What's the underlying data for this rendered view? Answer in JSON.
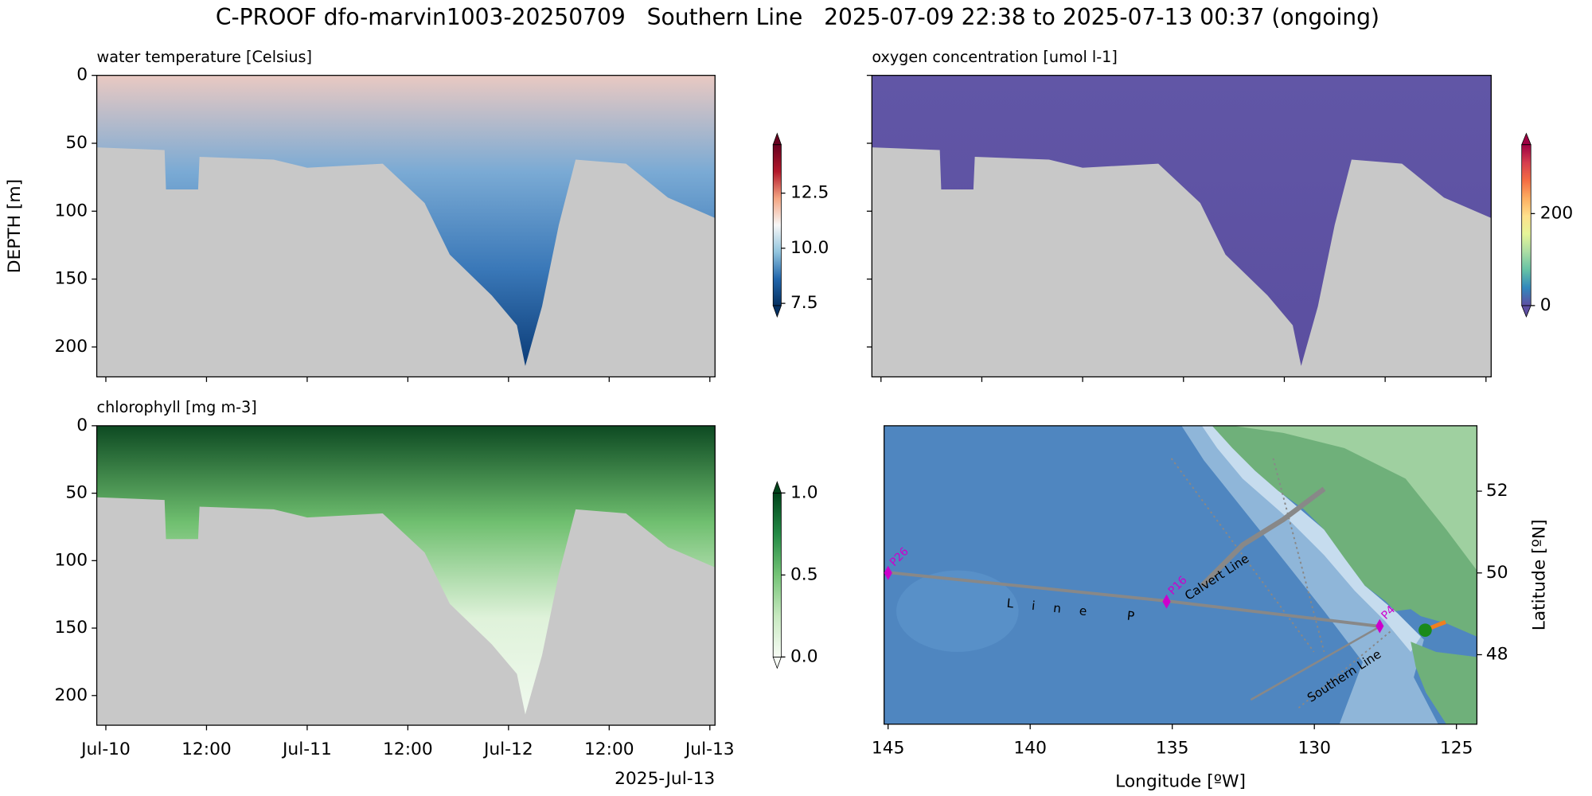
{
  "title": "C-PROOF dfo-marvin1003-20250709   Southern Line   2025-07-09 22:38 to 2025-07-13 00:37 (ongoing)",
  "chart_data": [
    {
      "type": "section",
      "title": "water temperature [Celsius]",
      "ylabel": "DEPTH [m]",
      "sharex": true,
      "x": [
        "2025-07-09 22:55",
        "2025-07-10 07:00",
        "2025-07-10 07:10",
        "2025-07-10 11:00",
        "2025-07-10 11:10",
        "2025-07-10 20:00",
        "2025-07-11 00:00",
        "2025-07-11 09:00",
        "2025-07-11 14:00",
        "2025-07-11 17:00",
        "2025-07-11 22:00",
        "2025-07-12 01:00",
        "2025-07-12 02:00",
        "2025-07-12 04:00",
        "2025-07-12 06:00",
        "2025-07-12 08:00",
        "2025-07-12 14:00",
        "2025-07-12 19:00",
        "2025-07-13 00:37"
      ],
      "values": [
        53,
        55,
        84,
        84,
        60,
        62,
        68,
        65,
        94,
        132,
        162,
        184,
        214,
        170,
        110,
        62,
        65,
        90,
        105
      ],
      "xlim": [
        "2025-07-09 22:55",
        "2025-07-13 00:37"
      ],
      "xticks": [
        "2025-07-10 00:00",
        "2025-07-10 12:00",
        "2025-07-11 00:00",
        "2025-07-11 12:00",
        "2025-07-12 00:00",
        "2025-07-12 12:00",
        "2025-07-13 00:00"
      ],
      "ylim": [
        222,
        0
      ],
      "yticks": [
        0,
        50,
        100,
        150,
        200
      ],
      "fill_colors": [
        "#e9c9c2",
        "#7aaad4",
        "#3a78b8",
        "#0b3c78"
      ],
      "colorbar": {
        "lim": [
          7.4,
          14.7
        ],
        "ticks": [
          7.5,
          {
            "value": 10,
            "label": "10.0"
          },
          12.5
        ],
        "colors": [
          "#053061",
          "#2166ac",
          "#92c5de",
          "#f7f7f7",
          "#f4a582",
          "#b2182b",
          "#67001f"
        ]
      }
    },
    {
      "type": "section",
      "title": "oxygen concentration [umol l-1]",
      "sharex": true,
      "sharey": true,
      "x": [
        "2025-07-09 22:55",
        "2025-07-10 07:00",
        "2025-07-10 07:10",
        "2025-07-10 11:00",
        "2025-07-10 11:10",
        "2025-07-10 20:00",
        "2025-07-11 00:00",
        "2025-07-11 09:00",
        "2025-07-11 14:00",
        "2025-07-11 17:00",
        "2025-07-11 22:00",
        "2025-07-12 01:00",
        "2025-07-12 02:00",
        "2025-07-12 04:00",
        "2025-07-12 06:00",
        "2025-07-12 08:00",
        "2025-07-12 14:00",
        "2025-07-12 19:00",
        "2025-07-13 00:37"
      ],
      "values": [
        53,
        55,
        84,
        84,
        60,
        62,
        68,
        65,
        94,
        132,
        162,
        184,
        214,
        170,
        110,
        62,
        65,
        90,
        105
      ],
      "xlim": [
        "2025-07-09 22:55",
        "2025-07-13 00:37"
      ],
      "xticks": [
        "2025-07-10 00:00",
        "2025-07-10 12:00",
        "2025-07-11 00:00",
        "2025-07-11 12:00",
        "2025-07-12 00:00",
        "2025-07-12 12:00",
        "2025-07-13 00:00"
      ],
      "ylim": [
        222,
        0
      ],
      "yticks": [
        0,
        50,
        100,
        150,
        200
      ],
      "fill_colors": [
        "#6156a6",
        "#5b4fa0"
      ],
      "colorbar": {
        "lim": [
          0,
          350
        ],
        "ticks": [
          0,
          200
        ],
        "colors": [
          "#5e4fa2",
          "#3288bd",
          "#66c2a5",
          "#abdda4",
          "#e6f598",
          "#fee08b",
          "#fdae61",
          "#f46d43",
          "#d53e4f",
          "#9e0142"
        ]
      }
    },
    {
      "type": "section",
      "title": "chlorophyll [mg m-3]",
      "x": [
        "2025-07-09 22:55",
        "2025-07-10 07:00",
        "2025-07-10 07:10",
        "2025-07-10 11:00",
        "2025-07-10 11:10",
        "2025-07-10 20:00",
        "2025-07-11 00:00",
        "2025-07-11 09:00",
        "2025-07-11 14:00",
        "2025-07-11 17:00",
        "2025-07-11 22:00",
        "2025-07-12 01:00",
        "2025-07-12 02:00",
        "2025-07-12 04:00",
        "2025-07-12 06:00",
        "2025-07-12 08:00",
        "2025-07-12 14:00",
        "2025-07-12 19:00",
        "2025-07-13 00:37"
      ],
      "values": [
        53,
        55,
        84,
        84,
        60,
        62,
        68,
        65,
        94,
        132,
        162,
        184,
        214,
        170,
        110,
        62,
        65,
        90,
        105
      ],
      "xlim": [
        "2025-07-09 22:55",
        "2025-07-13 00:37"
      ],
      "xticks": [
        {
          "value": "2025-07-10 00:00",
          "label": "Jul-10"
        },
        {
          "value": "2025-07-10 12:00",
          "label": "12:00"
        },
        {
          "value": "2025-07-11 00:00",
          "label": "Jul-11"
        },
        {
          "value": "2025-07-11 12:00",
          "label": "12:00"
        },
        {
          "value": "2025-07-12 00:00",
          "label": "Jul-12"
        },
        {
          "value": "2025-07-12 12:00",
          "label": "12:00"
        },
        {
          "value": "2025-07-13 00:00",
          "label": "Jul-13"
        }
      ],
      "xoffset_label": "2025-Jul-13",
      "ylim": [
        222,
        0
      ],
      "yticks": [
        0,
        50,
        100,
        150,
        200
      ],
      "fill_colors": [
        "#0d4a22",
        "#6fbf6f",
        "#dff2da",
        "#f0f9ee"
      ],
      "colorbar": {
        "lim": [
          0,
          1
        ],
        "ticks": [
          {
            "value": 0,
            "label": "0.0"
          },
          {
            "value": 0.5,
            "label": "0.5"
          },
          {
            "value": 1,
            "label": "1.0"
          }
        ],
        "colors": [
          "#f7fcf5",
          "#c7e9c0",
          "#74c476",
          "#238b45",
          "#00441b"
        ]
      }
    },
    {
      "type": "map",
      "xlabel": "Longitude [ºW]",
      "ylabel": "Latitude [ºN]",
      "xlim": [
        145.14,
        124.28
      ],
      "ylim": [
        46.3,
        53.6
      ],
      "xticks": [
        145,
        140,
        135,
        130,
        125
      ],
      "yticks": [
        48,
        50,
        52
      ],
      "stations": [
        {
          "name": "P26",
          "lon": 145,
          "lat": 50
        },
        {
          "name": "P16",
          "lon": 135.2,
          "lat": 49.3
        },
        {
          "name": "P4",
          "lon": 127.7,
          "lat": 48.7
        }
      ],
      "station_color": "#cc00cc",
      "line_labels": [
        "Calvert Line",
        "Line P",
        "Southern Line"
      ],
      "glider": {
        "lon": 126.1,
        "lat": 48.6,
        "color": "#1a8a1a"
      },
      "track_color": "#f07f1f"
    }
  ]
}
